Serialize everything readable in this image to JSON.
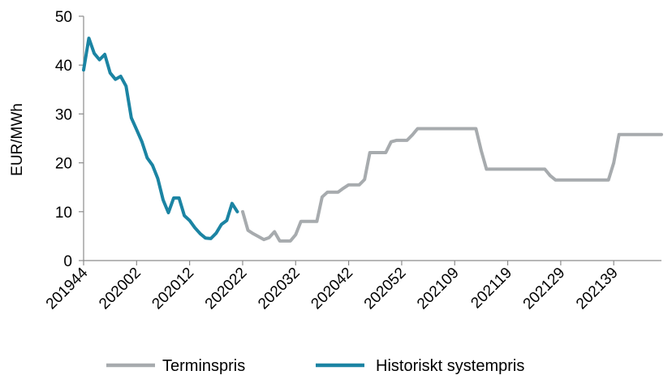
{
  "chart_data": {
    "type": "line",
    "ylabel": "EUR/MWh",
    "ylim": [
      0,
      50
    ],
    "yticks": [
      0,
      10,
      20,
      30,
      40,
      50
    ],
    "grid": false,
    "legend_position": "bottom",
    "x_axis": {
      "first_week": "201944",
      "last_week": "202148",
      "tick_labels": [
        "201944",
        "202002",
        "202012",
        "202022",
        "202032",
        "202042",
        "202052",
        "202109",
        "202119",
        "202129",
        "202139"
      ]
    },
    "series": [
      {
        "name": "Terminspris",
        "color": "#a7abae",
        "points": [
          [
            "202022",
            10
          ],
          [
            "202023",
            6.2
          ],
          [
            "202024",
            5.5
          ],
          [
            "202025",
            4.9
          ],
          [
            "202026",
            4.3
          ],
          [
            "202027",
            4.7
          ],
          [
            "202028",
            5.9
          ],
          [
            "202029",
            4.0
          ],
          [
            "202030",
            4.0
          ],
          [
            "202031",
            4.0
          ],
          [
            "202032",
            5.3
          ],
          [
            "202033",
            8.0
          ],
          [
            "202034",
            8.0
          ],
          [
            "202035",
            8.0
          ],
          [
            "202036",
            8.0
          ],
          [
            "202037",
            13.0
          ],
          [
            "202038",
            14.0
          ],
          [
            "202039",
            14.0
          ],
          [
            "202040",
            14.0
          ],
          [
            "202041",
            14.8
          ],
          [
            "202042",
            15.5
          ],
          [
            "202043",
            15.5
          ],
          [
            "202044",
            15.5
          ],
          [
            "202045",
            16.6
          ],
          [
            "202046",
            22.1
          ],
          [
            "202047",
            22.1
          ],
          [
            "202048",
            22.1
          ],
          [
            "202049",
            22.1
          ],
          [
            "202050",
            24.3
          ],
          [
            "202051",
            24.6
          ],
          [
            "202052",
            24.6
          ],
          [
            "202053",
            24.6
          ],
          [
            "202101",
            25.7
          ],
          [
            "202102",
            27.0
          ],
          [
            "202103",
            27.0
          ],
          [
            "202108",
            27.0
          ],
          [
            "202113",
            27.0
          ],
          [
            "202114",
            22.5
          ],
          [
            "202115",
            18.7
          ],
          [
            "202116",
            18.7
          ],
          [
            "202125",
            18.7
          ],
          [
            "202126",
            18.7
          ],
          [
            "202127",
            17.4
          ],
          [
            "202128",
            16.5
          ],
          [
            "202129",
            16.5
          ],
          [
            "202137",
            16.5
          ],
          [
            "202138",
            16.5
          ],
          [
            "202139",
            20.0
          ],
          [
            "202140",
            25.8
          ],
          [
            "202141",
            25.8
          ],
          [
            "202148",
            25.8
          ]
        ]
      },
      {
        "name": "Historiskt systempris",
        "color": "#1b84a3",
        "points": [
          [
            "201944",
            39.0
          ],
          [
            "201945",
            45.5
          ],
          [
            "201946",
            42.4
          ],
          [
            "201947",
            41.1
          ],
          [
            "201948",
            42.2
          ],
          [
            "201949",
            38.4
          ],
          [
            "201950",
            37.1
          ],
          [
            "201951",
            37.7
          ],
          [
            "201952",
            35.7
          ],
          [
            "202001",
            29.2
          ],
          [
            "202002",
            26.8
          ],
          [
            "202003",
            24.3
          ],
          [
            "202004",
            21.0
          ],
          [
            "202005",
            19.5
          ],
          [
            "202006",
            16.8
          ],
          [
            "202007",
            12.4
          ],
          [
            "202008",
            9.8
          ],
          [
            "202009",
            12.8
          ],
          [
            "202010",
            12.8
          ],
          [
            "202011",
            9.2
          ],
          [
            "202012",
            8.2
          ],
          [
            "202013",
            6.7
          ],
          [
            "202014",
            5.5
          ],
          [
            "202015",
            4.6
          ],
          [
            "202016",
            4.5
          ],
          [
            "202017",
            5.6
          ],
          [
            "202018",
            7.4
          ],
          [
            "202019",
            8.2
          ],
          [
            "202020",
            11.7
          ],
          [
            "202021",
            10.0
          ]
        ]
      }
    ]
  }
}
